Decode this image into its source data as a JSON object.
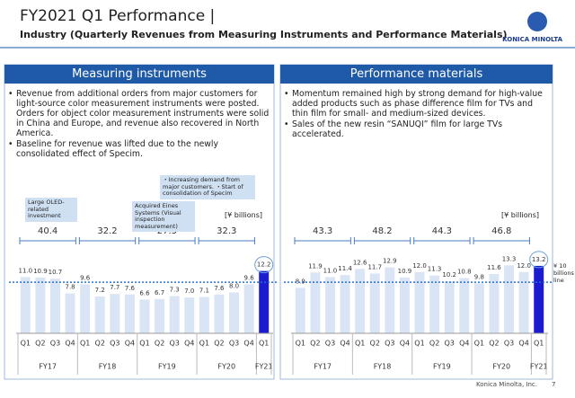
{
  "header": {
    "title": "FY2021 Q1 Performance  |",
    "subtitle": "Industry (Quarterly Revenues from Measuring Instruments and Performance Materials)",
    "logo": "KONICA MINOLTA"
  },
  "panels": [
    {
      "title": "Measuring instruments",
      "bullets": [
        "Revenue from additional orders from major customers for light-source color measurement instruments were posted. Orders for object color measurement instruments were solid in China and Europe, and revenue also recovered in North America.",
        "Baseline for revenue was lifted due to the newly consolidated effect of Specim."
      ]
    },
    {
      "title": "Performance materials",
      "bullets": [
        "Momentum remained high by strong demand for high-value added products such as phase difference film for TVs and thin film for small- and medium-sized devices.",
        "Sales of the new resin “SANUQI” film for large TVs accelerated."
      ]
    }
  ],
  "chart_data": [
    {
      "type": "bar",
      "unit_label": "[¥ billions]",
      "categories": [
        "Q1",
        "Q2",
        "Q3",
        "Q4",
        "Q1",
        "Q2",
        "Q3",
        "Q4",
        "Q1",
        "Q2",
        "Q3",
        "Q4",
        "Q1",
        "Q2",
        "Q3",
        "Q4",
        "Q1"
      ],
      "groups": [
        "FY17",
        "FY18",
        "FY19",
        "FY20",
        "FY21"
      ],
      "values": [
        11.0,
        10.9,
        10.7,
        7.8,
        9.6,
        7.2,
        7.7,
        7.6,
        6.6,
        6.7,
        7.3,
        7.0,
        7.1,
        7.6,
        8.0,
        9.6,
        12.2
      ],
      "value_labels": [
        "11.0",
        "10.9",
        "10.7",
        "7.8",
        "9.6",
        "7.2",
        "7.7",
        "7.6",
        "6.6",
        "6.7",
        "7.3",
        "7.0",
        "7.1",
        "7.6",
        "8.0",
        "9.6",
        "12.2"
      ],
      "annual_totals": [
        40.4,
        32.2,
        27.5,
        32.3
      ],
      "color": "#d9e5f4",
      "highlight_color": "#1b1bd0",
      "ylim": [
        0,
        16
      ],
      "reference_line": 10,
      "annotations": [
        "Large OLED-related investment",
        "Acquired Eines Systems (Visual inspection measurement)",
        "・Increasing demand from major customers. ・Start of consolidation of Specim"
      ]
    },
    {
      "type": "bar",
      "unit_label": "[¥ billions]",
      "categories": [
        "Q1",
        "Q2",
        "Q3",
        "Q4",
        "Q1",
        "Q2",
        "Q3",
        "Q4",
        "Q1",
        "Q2",
        "Q3",
        "Q4",
        "Q1",
        "Q2",
        "Q3",
        "Q4",
        "Q1"
      ],
      "groups": [
        "FY17",
        "FY18",
        "FY19",
        "FY20",
        "FY21"
      ],
      "values": [
        8.9,
        11.9,
        11.0,
        11.4,
        12.6,
        11.7,
        12.9,
        10.9,
        12.0,
        11.3,
        10.2,
        10.8,
        9.8,
        11.6,
        13.3,
        12.0,
        13.2
      ],
      "value_labels": [
        "8.9",
        "11.9",
        "11.0",
        "11.4",
        "12.6",
        "11.7",
        "12.9",
        "10.9",
        "12.0",
        "11.3",
        "10.2",
        "10.8",
        "9.8",
        "11.6",
        "13.3",
        "12.0",
        "13.2"
      ],
      "annual_totals": [
        43.3,
        48.2,
        44.3,
        46.8
      ],
      "color": "#d9e5f4",
      "highlight_color": "#1b1bd0",
      "ylim": [
        0,
        16
      ],
      "reference_line": 10,
      "reference_label": "¥ 10 billions line"
    }
  ],
  "footer": {
    "company": "Konica Minolta, Inc.",
    "page": "7"
  }
}
